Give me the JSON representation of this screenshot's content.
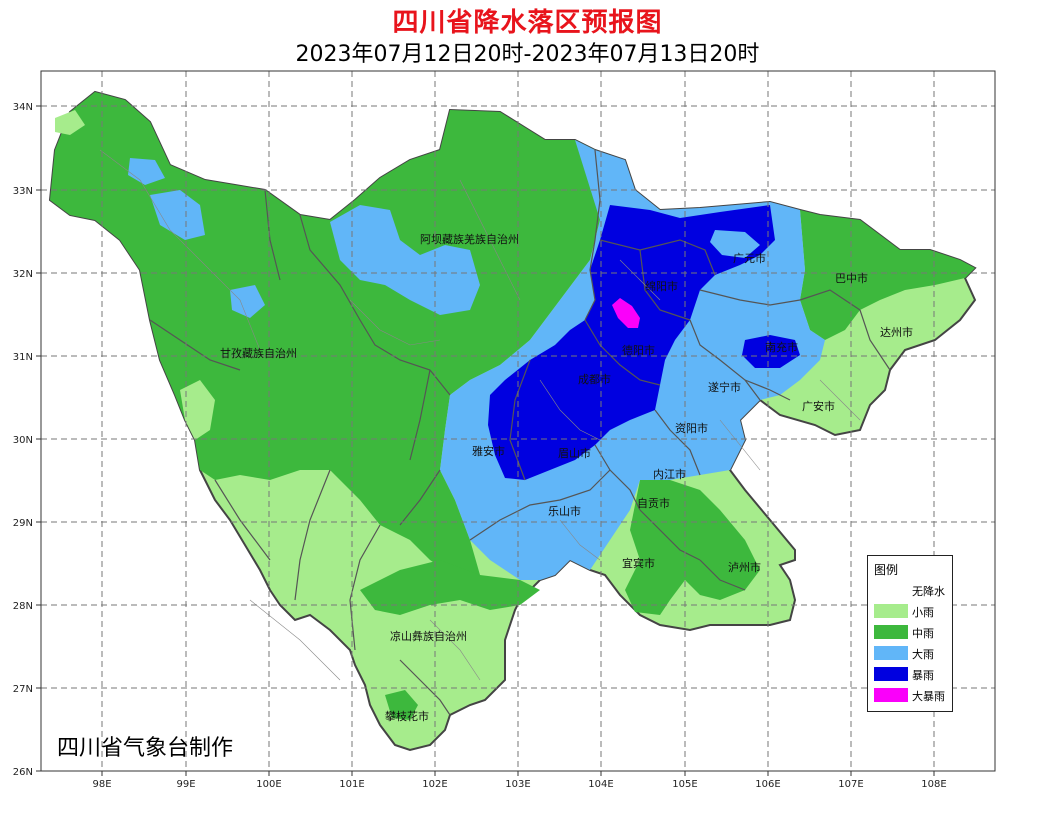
{
  "title": "四川省降水落区预报图",
  "subtitle": "2023年07月12日20时-2023年07月13日20时",
  "credit": "四川省气象台制作",
  "axes": {
    "lon_labels": [
      "98E",
      "99E",
      "100E",
      "101E",
      "102E",
      "103E",
      "104E",
      "105E",
      "106E",
      "107E",
      "108E"
    ],
    "lat_labels": [
      "34N",
      "33N",
      "32N",
      "31N",
      "30N",
      "29N",
      "28N",
      "27N",
      "26N"
    ]
  },
  "legend": {
    "title": "图例",
    "items": [
      {
        "label": "无降水",
        "color": "#ffffff"
      },
      {
        "label": "小雨",
        "color": "#a6ec8c"
      },
      {
        "label": "中雨",
        "color": "#3db83d"
      },
      {
        "label": "大雨",
        "color": "#61b6f8"
      },
      {
        "label": "暴雨",
        "color": "#0000e0"
      },
      {
        "label": "大暴雨",
        "color": "#fa00fa"
      }
    ]
  },
  "places": [
    {
      "name": "阿坝藏族羌族自治州"
    },
    {
      "name": "甘孜藏族自治州"
    },
    {
      "name": "凉山彝族自治州"
    },
    {
      "name": "攀枝花市"
    },
    {
      "name": "广元市"
    },
    {
      "name": "巴中市"
    },
    {
      "name": "绵阳市"
    },
    {
      "name": "德阳市"
    },
    {
      "name": "南充市"
    },
    {
      "name": "达州市"
    },
    {
      "name": "成都市"
    },
    {
      "name": "遂宁市"
    },
    {
      "name": "广安市"
    },
    {
      "name": "雅安市"
    },
    {
      "name": "眉山市"
    },
    {
      "name": "资阳市"
    },
    {
      "name": "内江市"
    },
    {
      "name": "乐山市"
    },
    {
      "name": "自贡市"
    },
    {
      "name": "宜宾市"
    },
    {
      "name": "泸州市"
    }
  ]
}
